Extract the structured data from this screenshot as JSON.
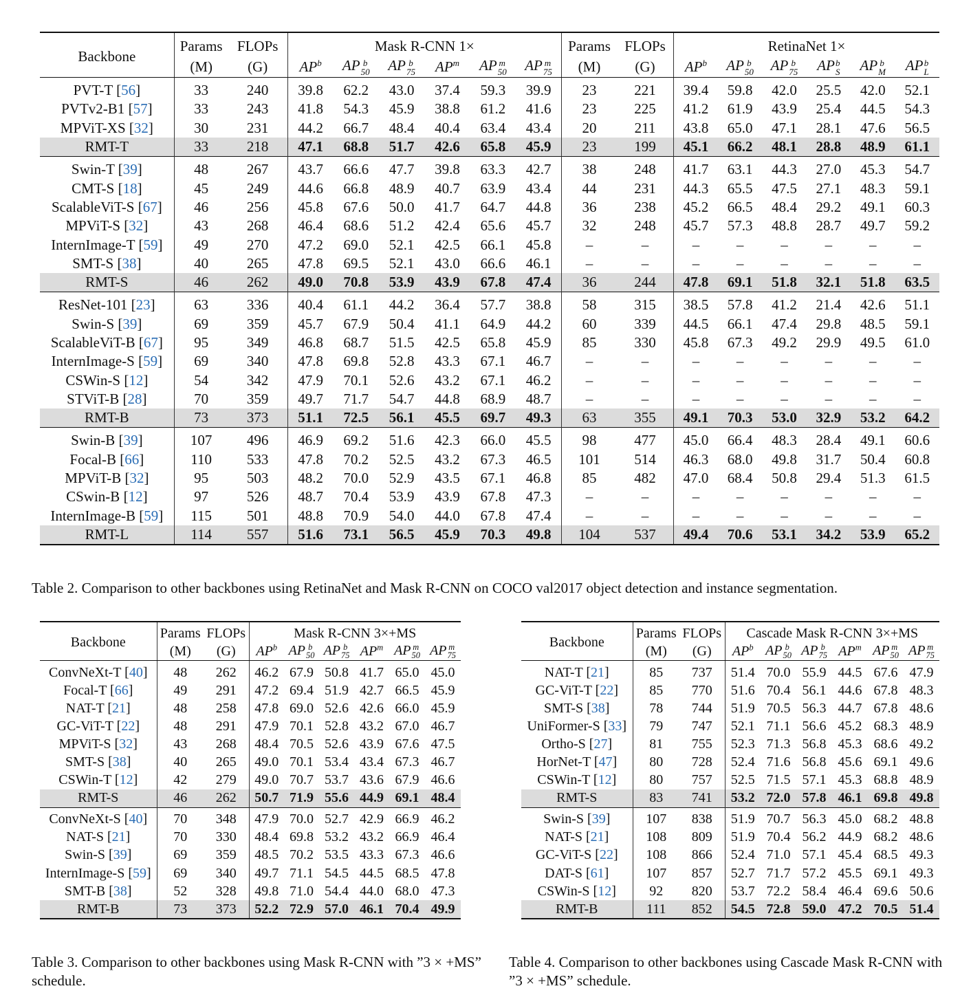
{
  "table2": {
    "head": {
      "backbone": "Backbone",
      "params": "Params",
      "params_unit": "(M)",
      "flops": "FLOPs",
      "flops_unit": "(G)",
      "mask_group": "Mask R-CNN 1×",
      "retina_group": "RetinaNet 1×"
    },
    "groups": [
      [
        {
          "name": "PVT-T",
          "cite": "56",
          "m": [
            "33",
            "240",
            "39.8",
            "62.2",
            "43.0",
            "37.4",
            "59.3",
            "39.9"
          ],
          "r": [
            "23",
            "221",
            "39.4",
            "59.8",
            "42.0",
            "25.5",
            "42.0",
            "52.1"
          ]
        },
        {
          "name": "PVTv2-B1",
          "cite": "57",
          "m": [
            "33",
            "243",
            "41.8",
            "54.3",
            "45.9",
            "38.8",
            "61.2",
            "41.6"
          ],
          "r": [
            "23",
            "225",
            "41.2",
            "61.9",
            "43.9",
            "25.4",
            "44.5",
            "54.3"
          ]
        },
        {
          "name": "MPViT-XS",
          "cite": "32",
          "m": [
            "30",
            "231",
            "44.2",
            "66.7",
            "48.4",
            "40.4",
            "63.4",
            "43.4"
          ],
          "r": [
            "20",
            "211",
            "43.8",
            "65.0",
            "47.1",
            "28.1",
            "47.6",
            "56.5"
          ]
        },
        {
          "name": "RMT-T",
          "cite": "",
          "hl": true,
          "m": [
            "33",
            "218",
            "47.1",
            "68.8",
            "51.7",
            "42.6",
            "65.8",
            "45.9"
          ],
          "r": [
            "23",
            "199",
            "45.1",
            "66.2",
            "48.1",
            "28.8",
            "48.9",
            "61.1"
          ]
        }
      ],
      [
        {
          "name": "Swin-T",
          "cite": "39",
          "m": [
            "48",
            "267",
            "43.7",
            "66.6",
            "47.7",
            "39.8",
            "63.3",
            "42.7"
          ],
          "r": [
            "38",
            "248",
            "41.7",
            "63.1",
            "44.3",
            "27.0",
            "45.3",
            "54.7"
          ]
        },
        {
          "name": "CMT-S",
          "cite": "18",
          "m": [
            "45",
            "249",
            "44.6",
            "66.8",
            "48.9",
            "40.7",
            "63.9",
            "43.4"
          ],
          "r": [
            "44",
            "231",
            "44.3",
            "65.5",
            "47.5",
            "27.1",
            "48.3",
            "59.1"
          ]
        },
        {
          "name": "ScalableViT-S",
          "cite": "67",
          "m": [
            "46",
            "256",
            "45.8",
            "67.6",
            "50.0",
            "41.7",
            "64.7",
            "44.8"
          ],
          "r": [
            "36",
            "238",
            "45.2",
            "66.5",
            "48.4",
            "29.2",
            "49.1",
            "60.3"
          ]
        },
        {
          "name": "MPViT-S",
          "cite": "32",
          "m": [
            "43",
            "268",
            "46.4",
            "68.6",
            "51.2",
            "42.4",
            "65.6",
            "45.7"
          ],
          "r": [
            "32",
            "248",
            "45.7",
            "57.3",
            "48.8",
            "28.7",
            "49.7",
            "59.2"
          ]
        },
        {
          "name": "InternImage-T",
          "cite": "59",
          "m": [
            "49",
            "270",
            "47.2",
            "69.0",
            "52.1",
            "42.5",
            "66.1",
            "45.8"
          ],
          "r": [
            "–",
            "–",
            "–",
            "–",
            "–",
            "–",
            "–",
            "–"
          ]
        },
        {
          "name": "SMT-S",
          "cite": "38",
          "m": [
            "40",
            "265",
            "47.8",
            "69.5",
            "52.1",
            "43.0",
            "66.6",
            "46.1"
          ],
          "r": [
            "–",
            "–",
            "–",
            "–",
            "–",
            "–",
            "–",
            "–"
          ]
        },
        {
          "name": "RMT-S",
          "cite": "",
          "hl": true,
          "m": [
            "46",
            "262",
            "49.0",
            "70.8",
            "53.9",
            "43.9",
            "67.8",
            "47.4"
          ],
          "r": [
            "36",
            "244",
            "47.8",
            "69.1",
            "51.8",
            "32.1",
            "51.8",
            "63.5"
          ]
        }
      ],
      [
        {
          "name": "ResNet-101",
          "cite": "23",
          "m": [
            "63",
            "336",
            "40.4",
            "61.1",
            "44.2",
            "36.4",
            "57.7",
            "38.8"
          ],
          "r": [
            "58",
            "315",
            "38.5",
            "57.8",
            "41.2",
            "21.4",
            "42.6",
            "51.1"
          ]
        },
        {
          "name": "Swin-S",
          "cite": "39",
          "m": [
            "69",
            "359",
            "45.7",
            "67.9",
            "50.4",
            "41.1",
            "64.9",
            "44.2"
          ],
          "r": [
            "60",
            "339",
            "44.5",
            "66.1",
            "47.4",
            "29.8",
            "48.5",
            "59.1"
          ]
        },
        {
          "name": "ScalableViT-B",
          "cite": "67",
          "m": [
            "95",
            "349",
            "46.8",
            "68.7",
            "51.5",
            "42.5",
            "65.8",
            "45.9"
          ],
          "r": [
            "85",
            "330",
            "45.8",
            "67.3",
            "49.2",
            "29.9",
            "49.5",
            "61.0"
          ]
        },
        {
          "name": "InternImage-S",
          "cite": "59",
          "m": [
            "69",
            "340",
            "47.8",
            "69.8",
            "52.8",
            "43.3",
            "67.1",
            "46.7"
          ],
          "r": [
            "–",
            "–",
            "–",
            "–",
            "–",
            "–",
            "–",
            "–"
          ]
        },
        {
          "name": "CSWin-S",
          "cite": "12",
          "m": [
            "54",
            "342",
            "47.9",
            "70.1",
            "52.6",
            "43.2",
            "67.1",
            "46.2"
          ],
          "r": [
            "–",
            "–",
            "–",
            "–",
            "–",
            "–",
            "–",
            "–"
          ]
        },
        {
          "name": "STViT-B",
          "cite": "28",
          "m": [
            "70",
            "359",
            "49.7",
            "71.7",
            "54.7",
            "44.8",
            "68.9",
            "48.7"
          ],
          "r": [
            "–",
            "–",
            "–",
            "–",
            "–",
            "–",
            "–",
            "–"
          ]
        },
        {
          "name": "RMT-B",
          "cite": "",
          "hl": true,
          "m": [
            "73",
            "373",
            "51.1",
            "72.5",
            "56.1",
            "45.5",
            "69.7",
            "49.3"
          ],
          "r": [
            "63",
            "355",
            "49.1",
            "70.3",
            "53.0",
            "32.9",
            "53.2",
            "64.2"
          ]
        }
      ],
      [
        {
          "name": "Swin-B",
          "cite": "39",
          "m": [
            "107",
            "496",
            "46.9",
            "69.2",
            "51.6",
            "42.3",
            "66.0",
            "45.5"
          ],
          "r": [
            "98",
            "477",
            "45.0",
            "66.4",
            "48.3",
            "28.4",
            "49.1",
            "60.6"
          ]
        },
        {
          "name": "Focal-B",
          "cite": "66",
          "m": [
            "110",
            "533",
            "47.8",
            "70.2",
            "52.5",
            "43.2",
            "67.3",
            "46.5"
          ],
          "r": [
            "101",
            "514",
            "46.3",
            "68.0",
            "49.8",
            "31.7",
            "50.4",
            "60.8"
          ]
        },
        {
          "name": "MPViT-B",
          "cite": "32",
          "m": [
            "95",
            "503",
            "48.2",
            "70.0",
            "52.9",
            "43.5",
            "67.1",
            "46.8"
          ],
          "r": [
            "85",
            "482",
            "47.0",
            "68.4",
            "50.8",
            "29.4",
            "51.3",
            "61.5"
          ]
        },
        {
          "name": "CSwin-B",
          "cite": "12",
          "m": [
            "97",
            "526",
            "48.7",
            "70.4",
            "53.9",
            "43.9",
            "67.8",
            "47.3"
          ],
          "r": [
            "–",
            "–",
            "–",
            "–",
            "–",
            "–",
            "–",
            "–"
          ]
        },
        {
          "name": "InternImage-B",
          "cite": "59",
          "m": [
            "115",
            "501",
            "48.8",
            "70.9",
            "54.0",
            "44.0",
            "67.8",
            "47.4"
          ],
          "r": [
            "–",
            "–",
            "–",
            "–",
            "–",
            "–",
            "–",
            "–"
          ]
        },
        {
          "name": "RMT-L",
          "cite": "",
          "hl": true,
          "m": [
            "114",
            "557",
            "51.6",
            "73.1",
            "56.5",
            "45.9",
            "70.3",
            "49.8"
          ],
          "r": [
            "104",
            "537",
            "49.4",
            "70.6",
            "53.1",
            "34.2",
            "53.9",
            "65.2"
          ]
        }
      ]
    ],
    "caption": "Table 2. Comparison to other backbones using RetinaNet and Mask R-CNN on COCO val2017 object detection and instance segmentation."
  },
  "table3": {
    "head": {
      "backbone": "Backbone",
      "params": "Params",
      "params_unit": "(M)",
      "flops": "FLOPs",
      "flops_unit": "(G)",
      "group": "Mask R-CNN 3×+MS"
    },
    "groups": [
      [
        {
          "name": "ConvNeXt-T",
          "cite": "40",
          "v": [
            "48",
            "262",
            "46.2",
            "67.9",
            "50.8",
            "41.7",
            "65.0",
            "45.0"
          ]
        },
        {
          "name": "Focal-T",
          "cite": "66",
          "v": [
            "49",
            "291",
            "47.2",
            "69.4",
            "51.9",
            "42.7",
            "66.5",
            "45.9"
          ]
        },
        {
          "name": "NAT-T",
          "cite": "21",
          "v": [
            "48",
            "258",
            "47.8",
            "69.0",
            "52.6",
            "42.6",
            "66.0",
            "45.9"
          ]
        },
        {
          "name": "GC-ViT-T",
          "cite": "22",
          "v": [
            "48",
            "291",
            "47.9",
            "70.1",
            "52.8",
            "43.2",
            "67.0",
            "46.7"
          ]
        },
        {
          "name": "MPViT-S",
          "cite": "32",
          "v": [
            "43",
            "268",
            "48.4",
            "70.5",
            "52.6",
            "43.9",
            "67.6",
            "47.5"
          ]
        },
        {
          "name": "SMT-S",
          "cite": "38",
          "v": [
            "40",
            "265",
            "49.0",
            "70.1",
            "53.4",
            "43.4",
            "67.3",
            "46.7"
          ]
        },
        {
          "name": "CSWin-T",
          "cite": "12",
          "v": [
            "42",
            "279",
            "49.0",
            "70.7",
            "53.7",
            "43.6",
            "67.9",
            "46.6"
          ]
        },
        {
          "name": "RMT-S",
          "cite": "",
          "hl": true,
          "v": [
            "46",
            "262",
            "50.7",
            "71.9",
            "55.6",
            "44.9",
            "69.1",
            "48.4"
          ]
        }
      ],
      [
        {
          "name": "ConvNeXt-S",
          "cite": "40",
          "v": [
            "70",
            "348",
            "47.9",
            "70.0",
            "52.7",
            "42.9",
            "66.9",
            "46.2"
          ]
        },
        {
          "name": "NAT-S",
          "cite": "21",
          "v": [
            "70",
            "330",
            "48.4",
            "69.8",
            "53.2",
            "43.2",
            "66.9",
            "46.4"
          ]
        },
        {
          "name": "Swin-S",
          "cite": "39",
          "v": [
            "69",
            "359",
            "48.5",
            "70.2",
            "53.5",
            "43.3",
            "67.3",
            "46.6"
          ]
        },
        {
          "name": "InternImage-S",
          "cite": "59",
          "v": [
            "69",
            "340",
            "49.7",
            "71.1",
            "54.5",
            "44.5",
            "68.5",
            "47.8"
          ]
        },
        {
          "name": "SMT-B",
          "cite": "38",
          "v": [
            "52",
            "328",
            "49.8",
            "71.0",
            "54.4",
            "44.0",
            "68.0",
            "47.3"
          ]
        },
        {
          "name": "RMT-B",
          "cite": "",
          "hl": true,
          "v": [
            "73",
            "373",
            "52.2",
            "72.9",
            "57.0",
            "46.1",
            "70.4",
            "49.9"
          ]
        }
      ]
    ],
    "caption": "Table 3. Comparison to other backbones using Mask R-CNN with ”3 × +MS” schedule."
  },
  "table4": {
    "head": {
      "backbone": "Backbone",
      "params": "Params",
      "params_unit": "(M)",
      "flops": "FLOPs",
      "flops_unit": "(G)",
      "group": "Cascade Mask R-CNN 3×+MS"
    },
    "groups": [
      [
        {
          "name": "NAT-T",
          "cite": "21",
          "v": [
            "85",
            "737",
            "51.4",
            "70.0",
            "55.9",
            "44.5",
            "67.6",
            "47.9"
          ]
        },
        {
          "name": "GC-ViT-T",
          "cite": "22",
          "v": [
            "85",
            "770",
            "51.6",
            "70.4",
            "56.1",
            "44.6",
            "67.8",
            "48.3"
          ]
        },
        {
          "name": "SMT-S",
          "cite": "38",
          "v": [
            "78",
            "744",
            "51.9",
            "70.5",
            "56.3",
            "44.7",
            "67.8",
            "48.6"
          ]
        },
        {
          "name": "UniFormer-S",
          "cite": "33",
          "v": [
            "79",
            "747",
            "52.1",
            "71.1",
            "56.6",
            "45.2",
            "68.3",
            "48.9"
          ]
        },
        {
          "name": "Ortho-S",
          "cite": "27",
          "v": [
            "81",
            "755",
            "52.3",
            "71.3",
            "56.8",
            "45.3",
            "68.6",
            "49.2"
          ]
        },
        {
          "name": "HorNet-T",
          "cite": "47",
          "v": [
            "80",
            "728",
            "52.4",
            "71.6",
            "56.8",
            "45.6",
            "69.1",
            "49.6"
          ]
        },
        {
          "name": "CSWin-T",
          "cite": "12",
          "v": [
            "80",
            "757",
            "52.5",
            "71.5",
            "57.1",
            "45.3",
            "68.8",
            "48.9"
          ]
        },
        {
          "name": "RMT-S",
          "cite": "",
          "hl": true,
          "v": [
            "83",
            "741",
            "53.2",
            "72.0",
            "57.8",
            "46.1",
            "69.8",
            "49.8"
          ]
        }
      ],
      [
        {
          "name": "Swin-S",
          "cite": "39",
          "v": [
            "107",
            "838",
            "51.9",
            "70.7",
            "56.3",
            "45.0",
            "68.2",
            "48.8"
          ]
        },
        {
          "name": "NAT-S",
          "cite": "21",
          "v": [
            "108",
            "809",
            "51.9",
            "70.4",
            "56.2",
            "44.9",
            "68.2",
            "48.6"
          ]
        },
        {
          "name": "GC-ViT-S",
          "cite": "22",
          "v": [
            "108",
            "866",
            "52.4",
            "71.0",
            "57.1",
            "45.4",
            "68.5",
            "49.3"
          ]
        },
        {
          "name": "DAT-S",
          "cite": "61",
          "v": [
            "107",
            "857",
            "52.7",
            "71.7",
            "57.2",
            "45.5",
            "69.1",
            "49.3"
          ]
        },
        {
          "name": "CSWin-S",
          "cite": "12",
          "v": [
            "92",
            "820",
            "53.7",
            "72.2",
            "58.4",
            "46.4",
            "69.6",
            "50.6"
          ]
        },
        {
          "name": "RMT-B",
          "cite": "",
          "hl": true,
          "v": [
            "111",
            "852",
            "54.5",
            "72.8",
            "59.0",
            "47.2",
            "70.5",
            "51.4"
          ]
        }
      ]
    ],
    "caption": "Table 4. Comparison to other backbones using Cascade Mask R-CNN with ”3 × +MS” schedule."
  }
}
